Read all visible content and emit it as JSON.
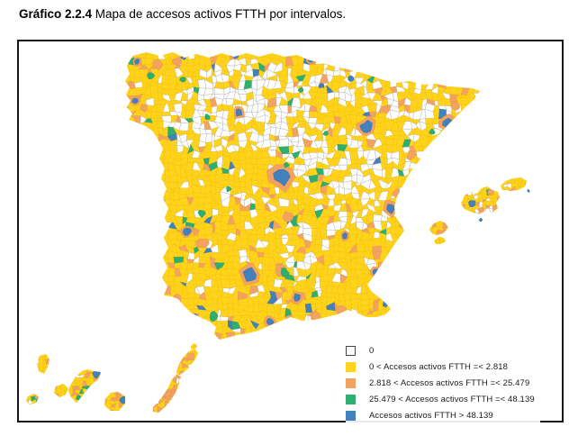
{
  "title": {
    "prefix": "Gráfico 2.2.4",
    "rest": " Mapa de accesos activos FTTH por intervalos."
  },
  "legend": {
    "items": [
      {
        "label": "0",
        "color": "#FFFFFF",
        "border": "#444444"
      },
      {
        "label": "0 < Accesos activos FTTH =< 2.818",
        "color": "#FFD21C"
      },
      {
        "label": "2.818 < Accesos activos FTTH =< 25.479",
        "color": "#F3A25F"
      },
      {
        "label": "25.479 < Accesos activos FTTH =< 48.139",
        "color": "#2EAE71"
      },
      {
        "label": "Accesos activos FTTH > 48.139",
        "color": "#4380BE"
      }
    ]
  },
  "chart_data": {
    "type": "choropleth_map",
    "title": "Mapa de accesos activos FTTH por intervalos",
    "metric": "Accesos activos FTTH",
    "geography": "Municipios de España (península, Islas Baleares e Islas Canarias)",
    "classes": [
      {
        "range": "0",
        "color": "#FFFFFF"
      },
      {
        "range": "0 < x =< 2.818",
        "color": "#FFD21C"
      },
      {
        "range": "2.818 < x =< 25.479",
        "color": "#F3A25F"
      },
      {
        "range": "25.479 < x =< 48.139",
        "color": "#2EAE71"
      },
      {
        "range": "x > 48.139",
        "color": "#4380BE"
      }
    ],
    "legend_position": "bottom-right",
    "notes": "Municipios mayoritariamente amarillos; interior peninsular con malla de municipios en blanco (valor 0); manchas azules en grandes ciudades (Madrid, Zaragoza, Sevilla...)"
  },
  "map_style": {
    "boundary_web_color": "#ABABAB",
    "frame_color": "#161616",
    "background": "#FFFFFF"
  }
}
